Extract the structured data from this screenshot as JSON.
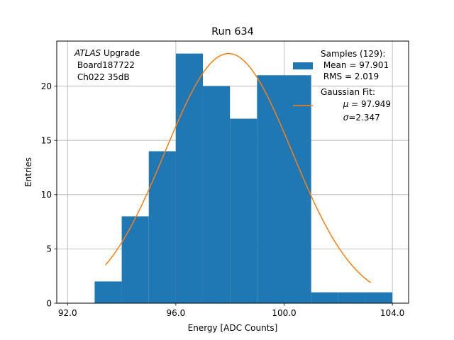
{
  "chart_data": {
    "type": "bar",
    "title": "Run 634",
    "xlabel": "Energy [ADC Counts]",
    "ylabel": "Entries",
    "xlim": [
      91.6,
      104.6
    ],
    "ylim": [
      0,
      24.15
    ],
    "grid": true,
    "x_ticks": [
      92.0,
      96.0,
      100.0,
      104.0
    ],
    "x_tick_labels": [
      "92.0",
      "96.0",
      "100.0",
      "104.0"
    ],
    "y_ticks": [
      0,
      5,
      10,
      15,
      20
    ],
    "y_tick_labels": [
      "0",
      "5",
      "10",
      "15",
      "20"
    ],
    "histogram": {
      "name": "Samples",
      "color": "#1f77b4",
      "bin_edges": [
        93.0,
        94.0,
        95.0,
        96.0,
        97.0,
        98.0,
        99.0,
        100.0,
        101.0,
        102.0,
        103.0,
        104.0
      ],
      "counts": [
        2,
        8,
        14,
        23,
        20,
        17,
        21,
        21,
        1,
        1,
        1
      ]
    },
    "fit": {
      "name": "Gaussian Fit",
      "color": "#ff7f0e",
      "mu": 97.949,
      "sigma": 2.347,
      "x_range": [
        93.4,
        103.2
      ],
      "amplitude": 23.0
    },
    "annotation": {
      "line1_italic": "ATLAS",
      "line1_rest": " Upgrade",
      "line2": " Board187722",
      "line3": " Ch022 35dB"
    },
    "legend": {
      "position": "top-right",
      "samples_title": "Samples (129):",
      "samples_mean": " Mean = 97.901",
      "samples_rms": " RMS = 2.019",
      "fit_title": "Gaussian Fit:",
      "fit_mu_symbol": "μ",
      "fit_mu_rest": " = 97.949",
      "fit_sigma_symbol": "σ",
      "fit_sigma_rest": "=2.347"
    }
  }
}
